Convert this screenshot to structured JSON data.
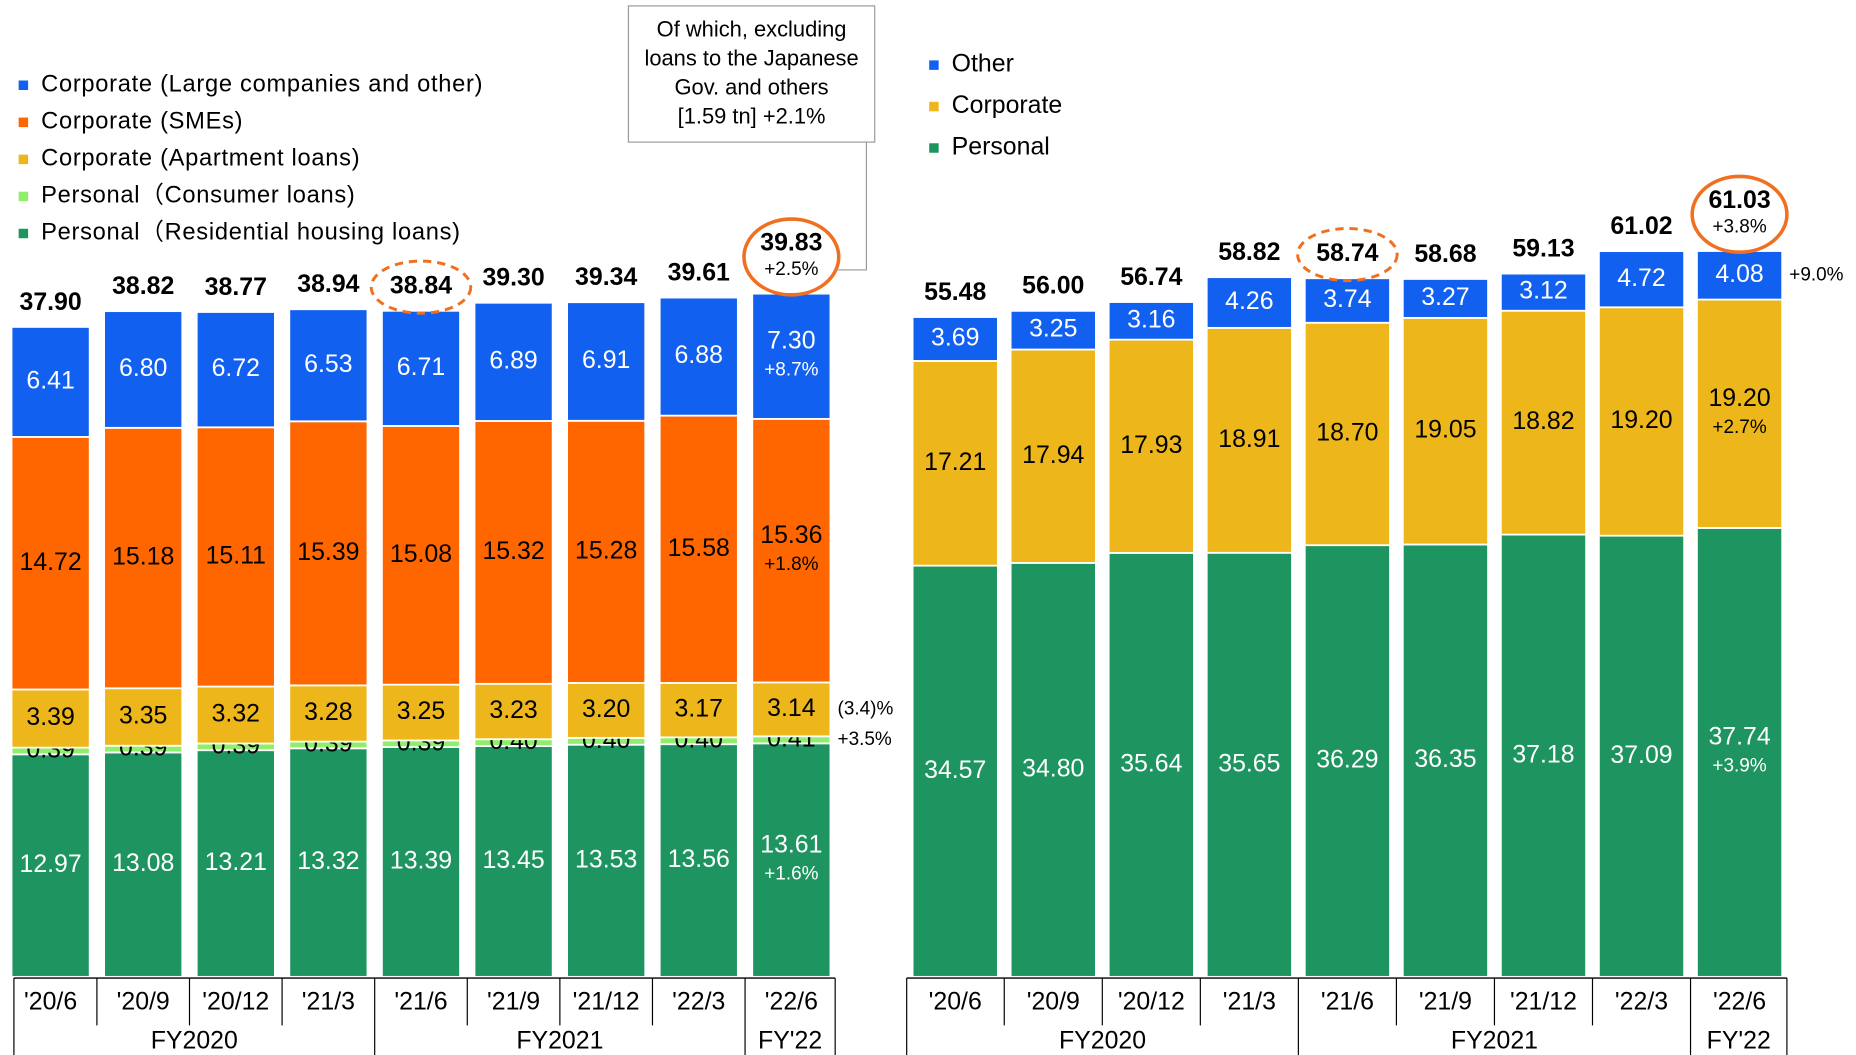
{
  "chart_data": [
    {
      "type": "stacked_bar",
      "categories": [
        "'20/6",
        "'20/9",
        "'20/12",
        "'21/3",
        "'21/6",
        "'21/9",
        "'21/12",
        "'22/3",
        "'22/6"
      ],
      "fiscal_year": [
        "FY2020",
        "FY2020",
        "FY2020",
        "FY2020",
        "FY2021",
        "FY2021",
        "FY2021",
        "FY2021",
        "FY'22"
      ],
      "series": [
        {
          "name": "Personal（Residential housing loans)",
          "color": "#1e9460",
          "label_color": "#ffffff",
          "values": [
            12.97,
            13.08,
            13.21,
            13.32,
            13.39,
            13.45,
            13.53,
            13.56,
            13.61
          ],
          "value_labels": [
            "12.97",
            "13.08",
            "13.21",
            "13.32",
            "13.39",
            "13.45",
            "13.53",
            "13.56",
            "13.61"
          ],
          "change_label": "+1.6%"
        },
        {
          "name": "Personal（Consumer loans)",
          "color": "#8fee6b",
          "label_color": "#000000",
          "values": [
            0.39,
            0.39,
            0.39,
            0.39,
            0.39,
            0.4,
            0.4,
            0.4,
            0.41
          ],
          "value_labels": [
            "0.39",
            "0.39",
            "0.39",
            "0.39",
            "0.39",
            "0.40",
            "0.40",
            "0.40",
            "0.41"
          ],
          "change_label": "+3.5%"
        },
        {
          "name": "Corporate (Apartment loans)",
          "color": "#edb61a",
          "label_color": "#000000",
          "values": [
            3.39,
            3.35,
            3.32,
            3.28,
            3.25,
            3.23,
            3.2,
            3.17,
            3.14
          ],
          "value_labels": [
            "3.39",
            "3.35",
            "3.32",
            "3.28",
            "3.25",
            "3.23",
            "3.20",
            "3.17",
            "3.14"
          ],
          "change_label": "(3.4)%"
        },
        {
          "name": "Corporate (SMEs)",
          "color": "#ff6600",
          "label_color": "#000000",
          "values": [
            14.72,
            15.18,
            15.11,
            15.39,
            15.08,
            15.32,
            15.28,
            15.58,
            15.36
          ],
          "value_labels": [
            "14.72",
            "15.18",
            "15.11",
            "15.39",
            "15.08",
            "15.32",
            "15.28",
            "15.58",
            "15.36"
          ],
          "change_label": "+1.8%"
        },
        {
          "name": "Corporate (Large companies and other)",
          "color": "#1160f0",
          "label_color": "#ffffff",
          "values": [
            6.41,
            6.8,
            6.72,
            6.53,
            6.71,
            6.89,
            6.91,
            6.88,
            7.3
          ],
          "value_labels": [
            "6.41",
            "6.80",
            "6.72",
            "6.53",
            "6.71",
            "6.89",
            "6.91",
            "6.88",
            "7.30"
          ],
          "change_label": "+8.7%"
        }
      ],
      "totals": [
        37.9,
        38.82,
        38.77,
        38.94,
        38.84,
        39.3,
        39.34,
        39.61,
        39.83
      ],
      "total_labels": [
        "37.90",
        "38.82",
        "38.77",
        "38.94",
        "38.84",
        "39.30",
        "39.34",
        "39.61",
        "39.83"
      ],
      "total_change_label": "+2.5%",
      "callout": [
        "Of which, excluding",
        "loans to the Japanese",
        "Gov. and others",
        "[1.59 tn] +2.1%"
      ]
    },
    {
      "type": "stacked_bar",
      "categories": [
        "'20/6",
        "'20/9",
        "'20/12",
        "'21/3",
        "'21/6",
        "'21/9",
        "'21/12",
        "'22/3",
        "'22/6"
      ],
      "fiscal_year": [
        "FY2020",
        "FY2020",
        "FY2020",
        "FY2020",
        "FY2021",
        "FY2021",
        "FY2021",
        "FY2021",
        "FY'22"
      ],
      "series": [
        {
          "name": "Personal",
          "color": "#1e9460",
          "label_color": "#ffffff",
          "values": [
            34.57,
            34.8,
            35.64,
            35.65,
            36.29,
            36.35,
            37.18,
            37.09,
            37.74
          ],
          "value_labels": [
            "34.57",
            "34.80",
            "35.64",
            "35.65",
            "36.29",
            "36.35",
            "37.18",
            "37.09",
            "37.74"
          ],
          "change_label": "+3.9%"
        },
        {
          "name": "Corporate",
          "color": "#edb61a",
          "label_color": "#000000",
          "values": [
            17.21,
            17.94,
            17.93,
            18.91,
            18.7,
            19.05,
            18.82,
            19.2,
            19.2
          ],
          "value_labels": [
            "17.21",
            "17.94",
            "17.93",
            "18.91",
            "18.70",
            "19.05",
            "18.82",
            "19.20",
            "19.20"
          ],
          "change_label": "+2.7%"
        },
        {
          "name": "Other",
          "color": "#1160f0",
          "label_color": "#ffffff",
          "values": [
            3.69,
            3.25,
            3.16,
            4.26,
            3.74,
            3.27,
            3.12,
            4.72,
            4.08
          ],
          "value_labels": [
            "3.69",
            "3.25",
            "3.16",
            "4.26",
            "3.74",
            "3.27",
            "3.12",
            "4.72",
            "4.08"
          ],
          "change_label": "+9.0%"
        }
      ],
      "totals": [
        55.48,
        56.0,
        56.74,
        58.82,
        58.74,
        58.68,
        59.13,
        61.02,
        61.03
      ],
      "total_labels": [
        "55.48",
        "56.00",
        "56.74",
        "58.82",
        "58.74",
        "58.68",
        "59.13",
        "61.02",
        "61.03"
      ],
      "total_change_label": "+3.8%"
    }
  ]
}
